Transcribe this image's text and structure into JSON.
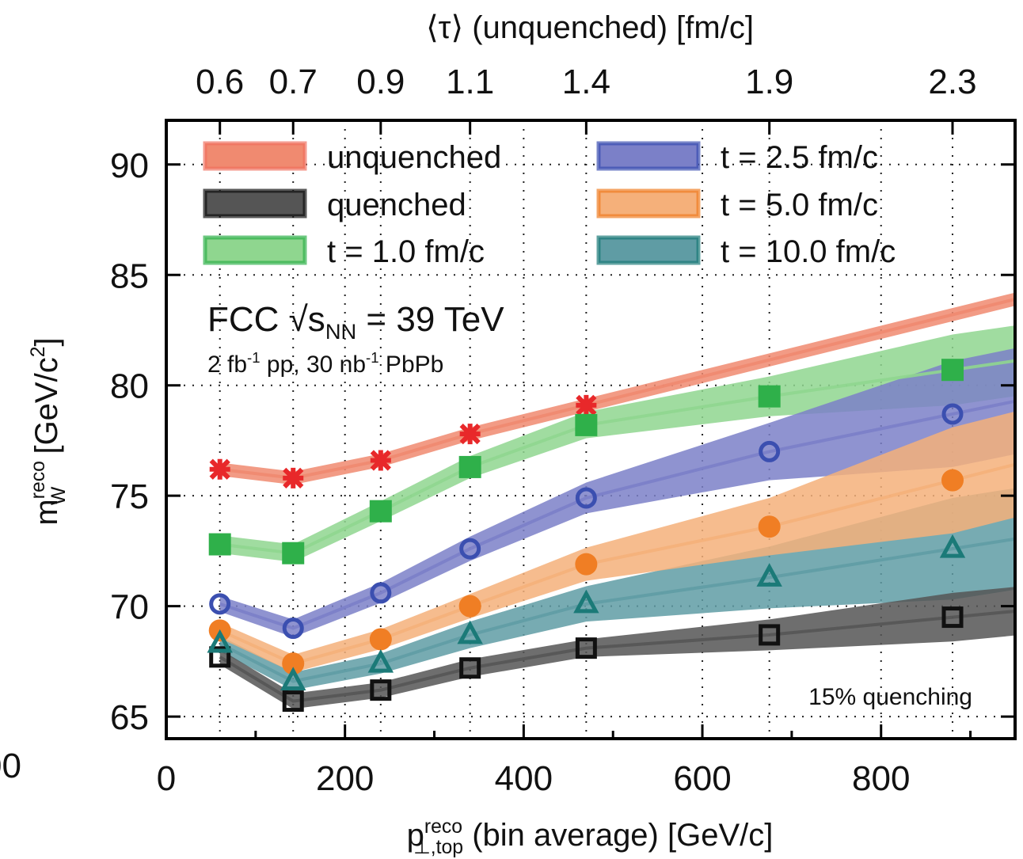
{
  "chart_data": {
    "type": "line",
    "top_axis": {
      "title": "⟨τ⟩ (unquenched) [fm/c]",
      "tick_labels": [
        "0.6",
        "0.7",
        "0.9",
        "1.1",
        "1.4",
        "1.9",
        "2.3"
      ]
    },
    "xlabel": {
      "main": "p",
      "sup": "reco",
      "sub": "⊥,top",
      "rest": " (bin average) [GeV/c]"
    },
    "ylabel": {
      "main": "m",
      "sup": "reco",
      "sub": "W",
      "rest": " [GeV/c",
      "sup2": "2",
      "close": "]"
    },
    "xlim": [
      0,
      950
    ],
    "ylim": [
      64,
      92
    ],
    "x_ticks": [
      0,
      200,
      400,
      600,
      800
    ],
    "y_ticks": [
      65,
      70,
      75,
      80,
      85,
      90
    ],
    "grid": true,
    "legend_position": "top",
    "left_edge_fragment": "00",
    "x": [
      60,
      142,
      240,
      340,
      470,
      675,
      880
    ],
    "series": [
      {
        "name": "unquenched",
        "marker": "x",
        "color": "#e8282a",
        "band_color": "#f08a70",
        "values": [
          76.2,
          75.8,
          76.6,
          77.8,
          79.1,
          null,
          null
        ],
        "band_half_width": [
          0.3,
          0.3,
          0.3,
          0.3,
          0.3,
          null,
          null
        ]
      },
      {
        "name": "quenched",
        "marker": "square-open",
        "color": "#111111",
        "band_color": "#555555",
        "values": [
          67.7,
          65.7,
          66.2,
          67.2,
          68.1,
          68.7,
          69.5
        ],
        "band_half_width": [
          0.35,
          0.35,
          0.35,
          0.4,
          0.4,
          0.7,
          1.1
        ]
      },
      {
        "name": "t =  1.0 fm/c",
        "marker": "square-filled",
        "color": "#2fb04a",
        "band_color": "#8fd68f",
        "values": [
          72.8,
          72.4,
          74.3,
          76.3,
          78.2,
          79.5,
          80.7
        ],
        "band_half_width": [
          0.4,
          0.4,
          0.45,
          0.5,
          0.6,
          0.9,
          1.6
        ]
      },
      {
        "name": "t =  2.5 fm/c",
        "marker": "circle-open",
        "color": "#3b4fb0",
        "band_color": "#7b80c8",
        "values": [
          70.1,
          69.0,
          70.6,
          72.6,
          74.9,
          77.0,
          78.7
        ],
        "band_half_width": [
          0.35,
          0.4,
          0.45,
          0.55,
          0.7,
          1.3,
          2.4
        ]
      },
      {
        "name": "t =  5.0 fm/c",
        "marker": "circle-filled",
        "color": "#f07e24",
        "band_color": "#f5b07a",
        "values": [
          68.9,
          67.4,
          68.5,
          70.0,
          71.9,
          73.6,
          75.7
        ],
        "band_half_width": [
          0.35,
          0.4,
          0.45,
          0.55,
          0.75,
          1.3,
          2.4
        ]
      },
      {
        "name": "t = 10.0 fm/c",
        "marker": "triangle-open",
        "color": "#1b7a78",
        "band_color": "#5f9ca4",
        "values": [
          68.3,
          66.6,
          67.4,
          68.7,
          70.1,
          71.3,
          72.6
        ],
        "band_half_width": [
          0.35,
          0.4,
          0.45,
          0.6,
          0.8,
          1.4,
          2.3
        ]
      }
    ],
    "annotations": {
      "experiment": "FCC √s",
      "experiment_sub": "NN",
      "energy": " = 39 TeV",
      "lumi_a": "2 fb",
      "lumi_a_sup": "-1",
      "lumi_b": " pp, 30 nb",
      "lumi_b_sup": "-1",
      "lumi_c": " PbPb",
      "quenching": "15% quenching"
    }
  }
}
